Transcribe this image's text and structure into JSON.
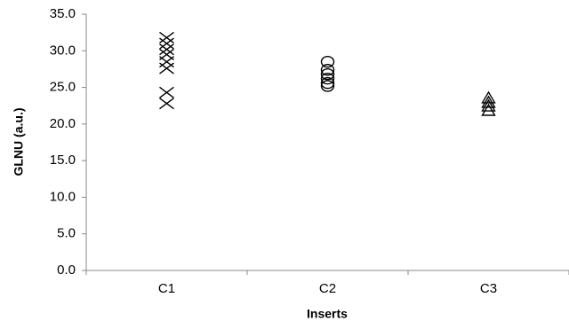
{
  "chart_data": {
    "type": "strip",
    "x_label": "Inserts",
    "y_label": "GLNU (a.u.)",
    "categories": [
      "C1",
      "C2",
      "C3"
    ],
    "values": [
      [
        31.8,
        31.0,
        30.2,
        29.5,
        28.5,
        27.6,
        24.3,
        22.8
      ],
      [
        28.5,
        27.4,
        26.8,
        26.2,
        25.6,
        25.2
      ],
      [
        23.5,
        22.9,
        22.4,
        21.8
      ]
    ],
    "markers": [
      "x",
      "circle",
      "triangle"
    ],
    "color": "#000000",
    "ylim": [
      0,
      35
    ],
    "yticks": [
      {
        "value": 0,
        "label": "0.0"
      },
      {
        "value": 5,
        "label": "5.0"
      },
      {
        "value": 10,
        "label": "10.0"
      },
      {
        "value": 15,
        "label": "15.0"
      },
      {
        "value": 20,
        "label": "20.0"
      },
      {
        "value": 25,
        "label": "25.0"
      },
      {
        "value": 30,
        "label": "30.0"
      },
      {
        "value": 35,
        "label": "35.0"
      }
    ]
  }
}
